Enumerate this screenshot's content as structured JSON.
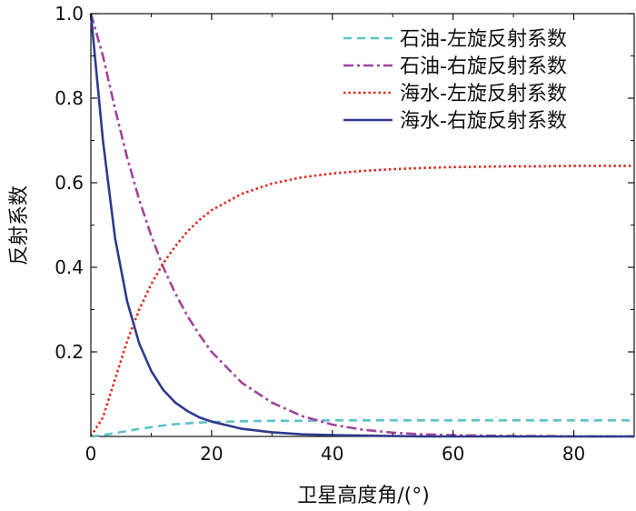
{
  "chart_data": {
    "type": "line",
    "xlabel": "卫星高度角/(°)",
    "ylabel": "反射系数",
    "xlim": [
      0,
      90
    ],
    "ylim": [
      0,
      1.0
    ],
    "x_ticks": [
      "0",
      "20",
      "40",
      "60",
      "80"
    ],
    "y_ticks": [
      "0.2",
      "0.4",
      "0.6",
      "0.8",
      "1.0"
    ],
    "grid": false,
    "legend_position": "top-right",
    "x": [
      0,
      2,
      4,
      6,
      8,
      10,
      12,
      14,
      16,
      18,
      20,
      25,
      30,
      35,
      40,
      45,
      50,
      55,
      60,
      65,
      70,
      75,
      80,
      85,
      90
    ],
    "series": [
      {
        "name": "石油-左旋反射系数",
        "style": "dashed",
        "color": "#5bc2c8",
        "values": [
          0.0,
          0.003,
          0.008,
          0.013,
          0.018,
          0.022,
          0.026,
          0.029,
          0.031,
          0.033,
          0.034,
          0.036,
          0.037,
          0.037,
          0.038,
          0.038,
          0.038,
          0.038,
          0.038,
          0.038,
          0.038,
          0.038,
          0.038,
          0.038,
          0.038
        ]
      },
      {
        "name": "石油-右旋反射系数",
        "style": "dashdot",
        "color": "#a0449c",
        "values": [
          1.0,
          0.9,
          0.775,
          0.66,
          0.56,
          0.475,
          0.4,
          0.338,
          0.285,
          0.24,
          0.2,
          0.127,
          0.08,
          0.048,
          0.028,
          0.016,
          0.009,
          0.005,
          0.003,
          0.002,
          0.001,
          0.001,
          0.0,
          0.0,
          0.0
        ]
      },
      {
        "name": "海水-左旋反射系数",
        "style": "dotted",
        "color": "#e02a1e",
        "values": [
          0.0,
          0.045,
          0.135,
          0.225,
          0.3,
          0.36,
          0.41,
          0.45,
          0.485,
          0.512,
          0.535,
          0.574,
          0.598,
          0.613,
          0.622,
          0.628,
          0.632,
          0.635,
          0.637,
          0.638,
          0.639,
          0.639,
          0.64,
          0.64,
          0.64
        ]
      },
      {
        "name": "海水-右旋反射系数",
        "style": "solid",
        "color": "#2e3a8c",
        "values": [
          1.0,
          0.7,
          0.47,
          0.32,
          0.22,
          0.155,
          0.11,
          0.08,
          0.06,
          0.045,
          0.035,
          0.018,
          0.01,
          0.005,
          0.003,
          0.002,
          0.001,
          0.0,
          0.0,
          0.0,
          0.0,
          0.0,
          0.0,
          0.0,
          0.0
        ]
      }
    ]
  }
}
